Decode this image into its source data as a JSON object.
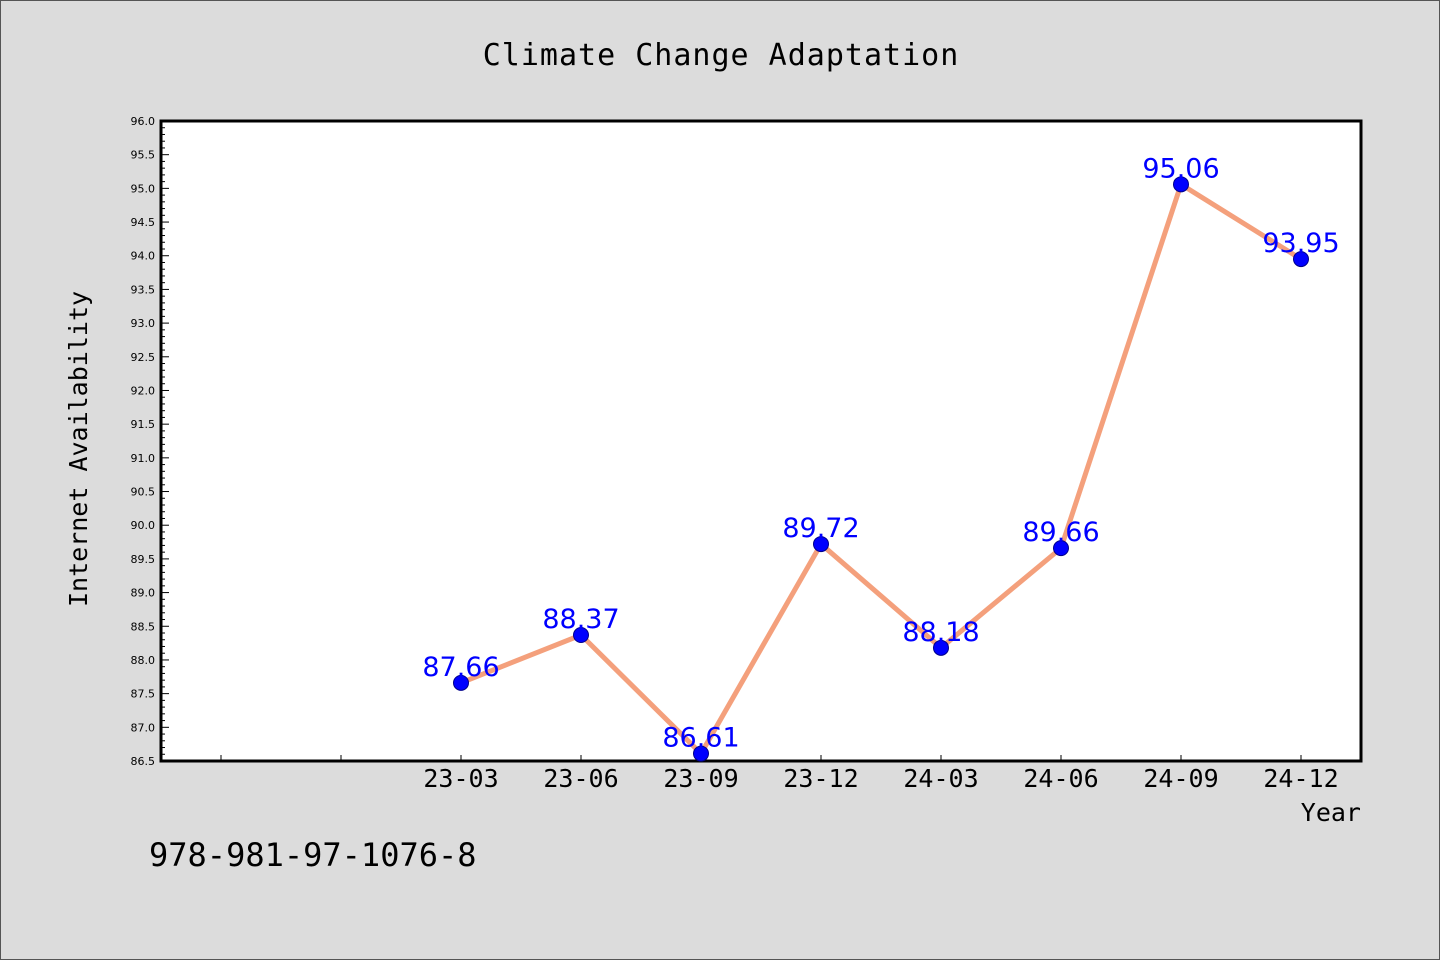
{
  "chart_data": {
    "type": "line",
    "title": "Climate Change Adaptation",
    "xlabel": "Year",
    "ylabel": "Internet Availability",
    "categories": [
      "23-03",
      "23-06",
      "23-09",
      "23-12",
      "24-03",
      "24-06",
      "24-09",
      "24-12"
    ],
    "series": [
      {
        "values": [
          87.66,
          88.37,
          86.61,
          89.72,
          88.18,
          89.66,
          95.06,
          93.95
        ]
      }
    ],
    "ylim": [
      86.5,
      96.0
    ],
    "ytick_step": 0.5,
    "grid": false,
    "legend": "none",
    "data_labels": true,
    "colors": {
      "line": "#f4a07c",
      "marker": "#0000ff",
      "label": "#0000ff",
      "plot_bg": "#ffffff",
      "page_bg": "#dcdcdc"
    }
  },
  "footer": {
    "isbn": "978-981-97-1076-8"
  }
}
